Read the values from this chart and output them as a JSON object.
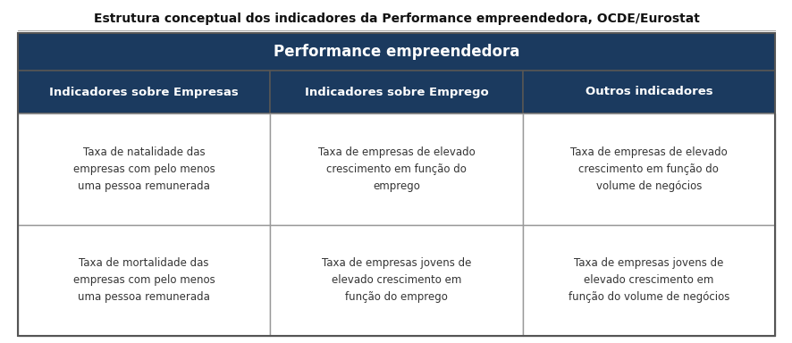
{
  "title": "Estrutura conceptual dos indicadores da Performance empreendedora, OCDE/Eurostat",
  "title_fontsize": 10,
  "header_main": "Performance empreendedora",
  "header_main_bg": "#1b3a5f",
  "header_main_fontsize": 12,
  "col_headers": [
    "Indicadores sobre Empresas",
    "Indicadores sobre Emprego",
    "Outros indicadores"
  ],
  "col_header_bg": "#1b3a5f",
  "col_header_fontsize": 9.5,
  "cells": [
    [
      "Taxa de natalidade das\nempresas com pelo menos\numa pessoa remunerada",
      "Taxa de empresas de elevado\ncrescimento em função do\nemprego",
      "Taxa de empresas de elevado\ncrescimento em função do\nvolume de negócios"
    ],
    [
      "Taxa de mortalidade das\nempresas com pelo menos\numa pessoa remunerada",
      "Taxa de empresas jovens de\nelevado crescimento em\nfunção do emprego",
      "Taxa de empresas jovens de\nelevado crescimento em\nfunção do volume de negócios"
    ]
  ],
  "cell_bg": "#ffffff",
  "cell_fontsize": 8.5,
  "text_color_header": "#ffffff",
  "text_color_cell": "#333333",
  "border_color": "#999999",
  "outer_border_color": "#555555",
  "background_color": "#ffffff",
  "title_line_color": "#aaaaaa"
}
